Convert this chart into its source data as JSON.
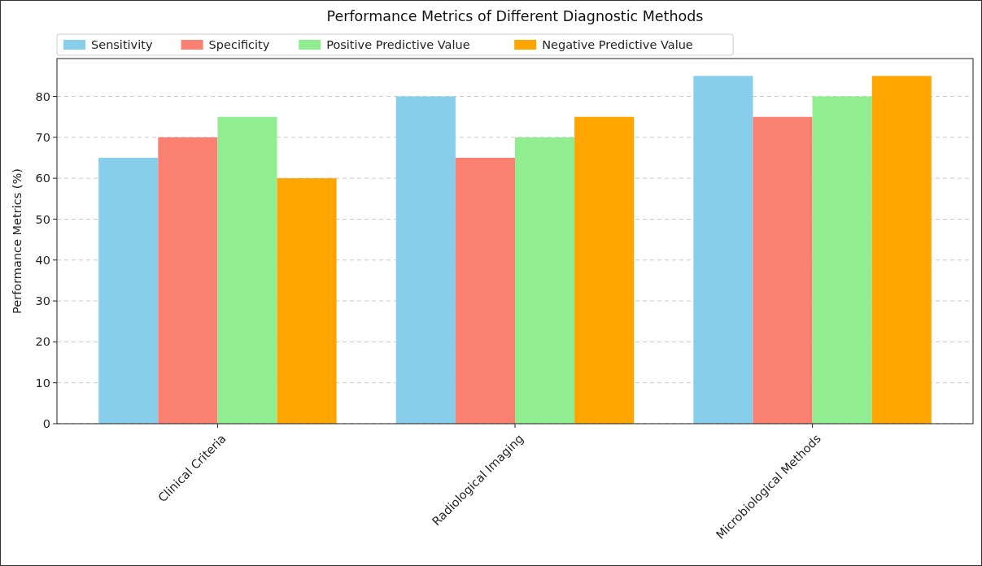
{
  "chart_data": {
    "type": "bar",
    "title": "Performance Metrics of Different Diagnostic Methods",
    "ylabel": "Performance Metrics (%)",
    "categories": [
      "Clinical Criteria",
      "Radiological Imaging",
      "Microbiological Methods"
    ],
    "series": [
      {
        "name": "Sensitivity",
        "color": "#87ceeb",
        "values": [
          65,
          80,
          85
        ]
      },
      {
        "name": "Specificity",
        "color": "#fa8072",
        "values": [
          70,
          65,
          75
        ]
      },
      {
        "name": "Positive Predictive Value",
        "color": "#90ee90",
        "values": [
          75,
          70,
          80
        ]
      },
      {
        "name": "Negative Predictive Value",
        "color": "#ffa500",
        "values": [
          60,
          75,
          85
        ]
      }
    ],
    "ylim": [
      0,
      89.25
    ],
    "yticks": [
      0,
      10,
      20,
      30,
      40,
      50,
      60,
      70,
      80
    ],
    "grid": "y",
    "legend": "top left"
  }
}
